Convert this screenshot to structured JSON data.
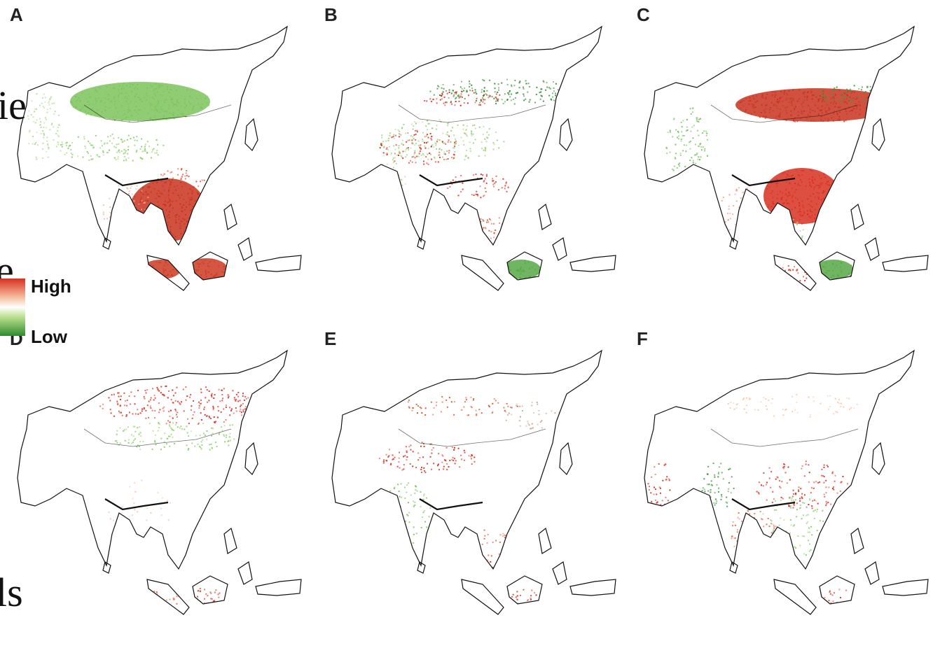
{
  "panels": [
    {
      "label": "A",
      "fill": "warm-south"
    },
    {
      "label": "B",
      "fill": "mixed-belts"
    },
    {
      "label": "C",
      "fill": "boreal-red"
    },
    {
      "label": "D",
      "fill": "north-scatter"
    },
    {
      "label": "E",
      "fill": "sparse-mixed"
    },
    {
      "label": "F",
      "fill": "central-scatter"
    }
  ],
  "legend": {
    "high_label": "High",
    "low_label": "Low",
    "colors": {
      "high": "#d7301f",
      "mid": "#ffffff",
      "low": "#2e8b2e"
    }
  },
  "background_text": {
    "fragment_top": "ie",
    "fragment_mid": "e",
    "fragment_bottom": "ls"
  }
}
